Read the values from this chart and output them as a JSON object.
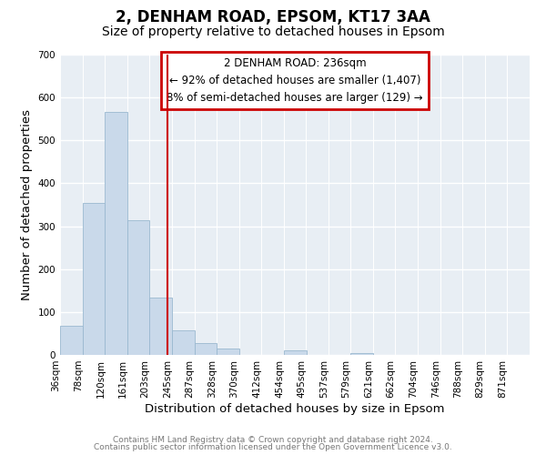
{
  "title": "2, DENHAM ROAD, EPSOM, KT17 3AA",
  "subtitle": "Size of property relative to detached houses in Epsom",
  "xlabel": "Distribution of detached houses by size in Epsom",
  "ylabel": "Number of detached properties",
  "bar_left_edges": [
    36,
    78,
    120,
    161,
    203,
    245,
    287,
    328,
    370,
    412,
    454,
    495,
    537,
    579,
    621,
    662,
    704,
    746,
    788,
    829
  ],
  "bar_heights": [
    68,
    355,
    567,
    313,
    133,
    57,
    27,
    14,
    0,
    0,
    10,
    0,
    0,
    4,
    0,
    0,
    0,
    0,
    0,
    0
  ],
  "bin_width": 42,
  "bar_color": "#c9d9ea",
  "bar_edgecolor": "#9ab8d0",
  "property_line_x": 236,
  "property_line_color": "#cc0000",
  "ylim": [
    0,
    700
  ],
  "yticks": [
    0,
    100,
    200,
    300,
    400,
    500,
    600,
    700
  ],
  "xtick_labels": [
    "36sqm",
    "78sqm",
    "120sqm",
    "161sqm",
    "203sqm",
    "245sqm",
    "287sqm",
    "328sqm",
    "370sqm",
    "412sqm",
    "454sqm",
    "495sqm",
    "537sqm",
    "579sqm",
    "621sqm",
    "662sqm",
    "704sqm",
    "746sqm",
    "788sqm",
    "829sqm",
    "871sqm"
  ],
  "xtick_positions": [
    36,
    78,
    120,
    161,
    203,
    245,
    287,
    328,
    370,
    412,
    454,
    495,
    537,
    579,
    621,
    662,
    704,
    746,
    788,
    829,
    871
  ],
  "annotation_title": "2 DENHAM ROAD: 236sqm",
  "annotation_line1": "← 92% of detached houses are smaller (1,407)",
  "annotation_line2": "8% of semi-detached houses are larger (129) →",
  "annotation_box_color": "#cc0000",
  "footer_line1": "Contains HM Land Registry data © Crown copyright and database right 2024.",
  "footer_line2": "Contains public sector information licensed under the Open Government Licence v3.0.",
  "plot_bg_color": "#e8eef4",
  "figure_bg_color": "#ffffff",
  "grid_color": "#ffffff",
  "title_fontsize": 12,
  "subtitle_fontsize": 10,
  "axis_label_fontsize": 9.5,
  "tick_fontsize": 7.5,
  "annotation_fontsize": 8.5,
  "footer_fontsize": 6.5
}
